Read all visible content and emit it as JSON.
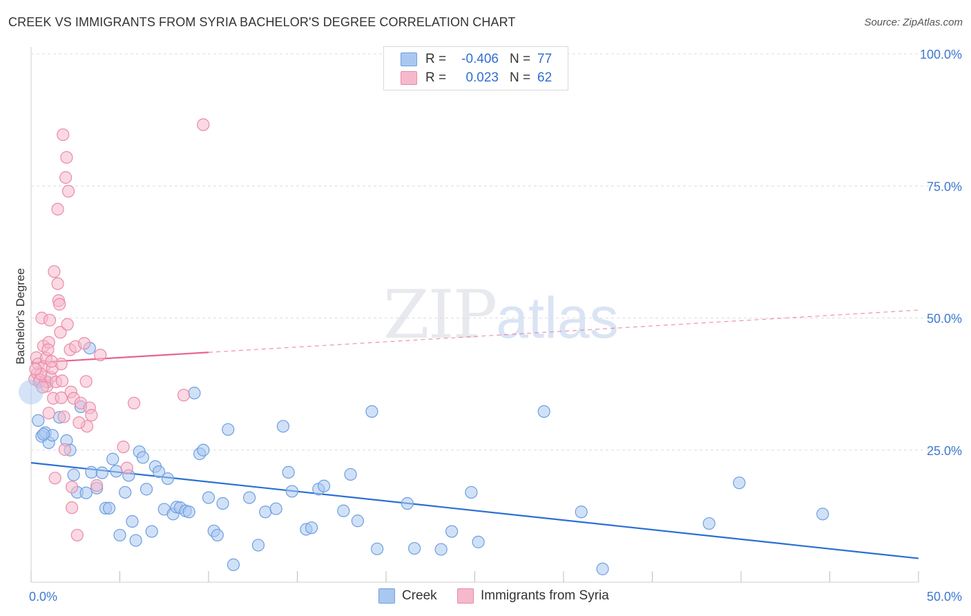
{
  "title": "CREEK VS IMMIGRANTS FROM SYRIA BACHELOR'S DEGREE CORRELATION CHART",
  "source": "Source: ZipAtlas.com",
  "watermark": {
    "zip": "ZIP",
    "atlas": "atlas"
  },
  "legend": {
    "r_label": "R =",
    "n_label": "N =",
    "rows": [
      {
        "r": "-0.406",
        "n": "77",
        "color": "#a9c8f0",
        "border": "#6c9ee0"
      },
      {
        "r": "0.023",
        "n": "62",
        "color": "#f6b9cc",
        "border": "#e98aa8"
      }
    ]
  },
  "chart_data": {
    "type": "scatter",
    "title": "CREEK VS IMMIGRANTS FROM SYRIA BACHELOR'S DEGREE CORRELATION CHART",
    "xlabel": "",
    "ylabel": "Bachelor's Degree",
    "xlim": [
      0,
      50
    ],
    "ylim": [
      0,
      100
    ],
    "x_ticks": [
      "0.0%",
      "50.0%"
    ],
    "y_ticks": [
      {
        "value": 25,
        "label": "25.0%"
      },
      {
        "value": 50,
        "label": "50.0%"
      },
      {
        "value": 75,
        "label": "75.0%"
      },
      {
        "value": 100,
        "label": "100.0%"
      }
    ],
    "grid": true,
    "series": [
      {
        "name": "Creek",
        "color": "#a9c8f0",
        "stroke": "#6c9ee0",
        "line_color": "#2a6fd3",
        "trend": {
          "x0": 0,
          "y0": 22.6,
          "x1": 50,
          "y1": 4.5,
          "solid_until": 50
        },
        "points": [
          [
            0.4,
            30.6
          ],
          [
            0.6,
            27.6
          ],
          [
            0.8,
            28.3
          ],
          [
            1.0,
            26.4
          ],
          [
            1.2,
            27.8
          ],
          [
            1.6,
            31.2
          ],
          [
            2.0,
            26.8
          ],
          [
            2.2,
            25.0
          ],
          [
            2.4,
            20.3
          ],
          [
            2.6,
            17.0
          ],
          [
            2.8,
            33.2
          ],
          [
            3.1,
            16.9
          ],
          [
            3.4,
            20.8
          ],
          [
            3.7,
            17.8
          ],
          [
            4.0,
            20.7
          ],
          [
            4.2,
            14.0
          ],
          [
            4.4,
            14.0
          ],
          [
            4.6,
            23.3
          ],
          [
            4.8,
            21.0
          ],
          [
            5.0,
            8.9
          ],
          [
            5.3,
            17.0
          ],
          [
            5.5,
            20.2
          ],
          [
            5.7,
            11.5
          ],
          [
            5.9,
            7.9
          ],
          [
            6.1,
            24.7
          ],
          [
            6.3,
            23.6
          ],
          [
            6.5,
            17.6
          ],
          [
            6.8,
            9.6
          ],
          [
            7.0,
            21.9
          ],
          [
            7.2,
            20.9
          ],
          [
            7.5,
            13.8
          ],
          [
            7.7,
            19.6
          ],
          [
            8.0,
            12.9
          ],
          [
            8.2,
            14.2
          ],
          [
            8.4,
            14.1
          ],
          [
            8.7,
            13.5
          ],
          [
            8.9,
            13.3
          ],
          [
            9.2,
            35.8
          ],
          [
            9.5,
            24.3
          ],
          [
            9.7,
            25.0
          ],
          [
            10.0,
            16.0
          ],
          [
            10.3,
            9.7
          ],
          [
            10.5,
            8.9
          ],
          [
            10.8,
            14.9
          ],
          [
            11.1,
            28.9
          ],
          [
            11.4,
            3.3
          ],
          [
            12.3,
            16.0
          ],
          [
            12.8,
            7.0
          ],
          [
            13.2,
            13.3
          ],
          [
            13.8,
            13.9
          ],
          [
            14.2,
            29.5
          ],
          [
            14.5,
            20.8
          ],
          [
            14.7,
            17.2
          ],
          [
            15.5,
            10.0
          ],
          [
            15.8,
            10.3
          ],
          [
            16.2,
            17.6
          ],
          [
            16.5,
            18.2
          ],
          [
            17.6,
            13.5
          ],
          [
            18.0,
            20.4
          ],
          [
            18.4,
            11.6
          ],
          [
            19.2,
            32.3
          ],
          [
            19.5,
            6.3
          ],
          [
            21.2,
            14.9
          ],
          [
            21.6,
            6.4
          ],
          [
            23.1,
            6.2
          ],
          [
            23.7,
            9.6
          ],
          [
            24.8,
            17.0
          ],
          [
            25.2,
            7.6
          ],
          [
            28.9,
            32.3
          ],
          [
            31.0,
            13.3
          ],
          [
            32.2,
            2.5
          ],
          [
            38.2,
            11.1
          ],
          [
            39.9,
            18.8
          ],
          [
            44.6,
            12.9
          ],
          [
            0.9,
            37.9
          ],
          [
            3.3,
            44.3
          ],
          [
            0.7,
            28.0
          ]
        ]
      },
      {
        "name": "Immigrants from Syria",
        "color": "#f6b9cc",
        "stroke": "#e98aa8",
        "line_color": "#e8638e",
        "trend": {
          "x0": 0,
          "y0": 41.5,
          "x1": 50,
          "y1": 51.5,
          "solid_until": 10
        },
        "points": [
          [
            0.2,
            38.4
          ],
          [
            0.3,
            42.5
          ],
          [
            0.35,
            39.5
          ],
          [
            0.4,
            41.3
          ],
          [
            0.45,
            37.9
          ],
          [
            0.5,
            38.3
          ],
          [
            0.6,
            50.0
          ],
          [
            0.7,
            44.7
          ],
          [
            0.75,
            40.9
          ],
          [
            0.8,
            38.0
          ],
          [
            0.85,
            42.4
          ],
          [
            0.9,
            37.1
          ],
          [
            1.0,
            32.0
          ],
          [
            1.0,
            45.4
          ],
          [
            1.05,
            49.6
          ],
          [
            1.1,
            38.8
          ],
          [
            1.2,
            40.5
          ],
          [
            1.25,
            34.8
          ],
          [
            1.3,
            58.8
          ],
          [
            1.35,
            19.7
          ],
          [
            1.4,
            37.9
          ],
          [
            1.5,
            56.5
          ],
          [
            1.5,
            70.6
          ],
          [
            1.55,
            53.3
          ],
          [
            1.6,
            52.6
          ],
          [
            1.65,
            47.3
          ],
          [
            1.7,
            41.3
          ],
          [
            1.7,
            34.9
          ],
          [
            1.8,
            84.7
          ],
          [
            1.85,
            31.3
          ],
          [
            1.9,
            25.1
          ],
          [
            1.95,
            76.6
          ],
          [
            2.0,
            80.4
          ],
          [
            2.05,
            48.8
          ],
          [
            2.1,
            74.0
          ],
          [
            2.2,
            44.0
          ],
          [
            2.25,
            36.0
          ],
          [
            2.3,
            18.0
          ],
          [
            2.3,
            14.1
          ],
          [
            2.4,
            34.8
          ],
          [
            2.5,
            44.6
          ],
          [
            2.6,
            8.9
          ],
          [
            2.8,
            33.9
          ],
          [
            3.0,
            45.2
          ],
          [
            3.1,
            38.0
          ],
          [
            3.3,
            33.0
          ],
          [
            3.15,
            29.5
          ],
          [
            3.4,
            31.6
          ],
          [
            3.7,
            18.3
          ],
          [
            3.9,
            43.0
          ],
          [
            5.2,
            25.6
          ],
          [
            5.4,
            21.6
          ],
          [
            5.8,
            33.9
          ],
          [
            8.6,
            35.4
          ],
          [
            9.7,
            86.6
          ],
          [
            0.55,
            39.4
          ],
          [
            0.65,
            36.9
          ],
          [
            1.15,
            41.8
          ],
          [
            0.25,
            40.3
          ],
          [
            1.75,
            38.1
          ],
          [
            2.7,
            30.2
          ],
          [
            0.95,
            44.0
          ]
        ]
      }
    ],
    "bottom_legend": [
      "Creek",
      "Immigrants from Syria"
    ]
  }
}
